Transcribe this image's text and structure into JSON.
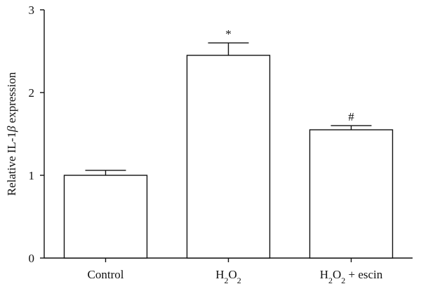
{
  "chart_data": {
    "type": "bar",
    "categories": [
      "Control",
      "H2O2",
      "H2O2 + escin"
    ],
    "category_labels": [
      {
        "parts": [
          {
            "text": "Control",
            "sub": false
          }
        ]
      },
      {
        "parts": [
          {
            "text": "H",
            "sub": false
          },
          {
            "text": "2",
            "sub": true
          },
          {
            "text": "O",
            "sub": false
          },
          {
            "text": "2",
            "sub": true
          }
        ]
      },
      {
        "parts": [
          {
            "text": "H",
            "sub": false
          },
          {
            "text": "2",
            "sub": true
          },
          {
            "text": "O",
            "sub": false
          },
          {
            "text": "2",
            "sub": true
          },
          {
            "text": " + escin",
            "sub": false
          }
        ]
      }
    ],
    "values": [
      1.0,
      2.45,
      1.55
    ],
    "errors": [
      0.06,
      0.15,
      0.05
    ],
    "annotations": [
      "",
      "*",
      "#"
    ],
    "title": "",
    "xlabel": "",
    "ylabel": "Relative IL-1β expression",
    "ylabel_parts": [
      {
        "text": "Relative IL-1",
        "italic": false
      },
      {
        "text": "β",
        "italic": true
      },
      {
        "text": " expression",
        "italic": false
      }
    ],
    "ylim": [
      0,
      3
    ],
    "yticks": [
      0,
      1,
      2,
      3
    ],
    "grid": false,
    "legend": "none",
    "bar_fill": "#ffffff",
    "bar_stroke": "#111111"
  }
}
